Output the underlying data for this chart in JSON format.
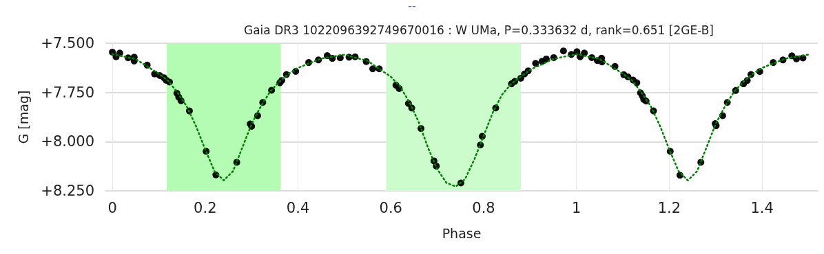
{
  "chart_data": {
    "type": "scatter",
    "title": "Gaia DR3 1022096392749670016 : W UMa, P=0.333632 d, rank=0.651 [2GE-B]",
    "xlabel": "Phase",
    "ylabel": "G [mag]",
    "annotations": [
      "--"
    ],
    "xlim": [
      -0.015,
      1.52
    ],
    "xticks": [
      0,
      0.2,
      0.4,
      0.6,
      0.8,
      1,
      1.2,
      1.4
    ],
    "ylim": [
      8.25,
      7.5
    ],
    "yticks": [
      {
        "value": 7.5,
        "label": "+7.500"
      },
      {
        "value": 7.75,
        "label": "+7.750"
      },
      {
        "value": 8.0,
        "label": "+8.000"
      },
      {
        "value": 8.25,
        "label": "+8.250"
      }
    ],
    "grid": true,
    "marker": "circle",
    "bands": [
      {
        "axis": "x",
        "from": 0.117,
        "to": 0.363,
        "color": "#b4fcb4"
      },
      {
        "axis": "x",
        "from": 0.59,
        "to": 0.88,
        "color": "#ccfccc"
      }
    ],
    "series": [
      {
        "color": "#000000",
        "x": [
          0.0,
          0.008,
          0.016,
          0.034,
          0.047,
          0.047,
          0.075,
          0.091,
          0.102,
          0.111,
          0.116,
          0.123,
          0.139,
          0.143,
          0.148,
          0.166,
          0.202,
          0.223,
          0.268,
          0.297,
          0.3,
          0.313,
          0.324,
          0.343,
          0.361,
          0.365,
          0.375,
          0.395,
          0.423,
          0.444,
          0.463,
          0.474,
          0.491,
          0.51,
          0.523,
          0.547,
          0.561,
          0.575,
          0.611,
          0.618,
          0.638,
          0.645,
          0.665,
          0.693,
          0.698,
          0.751,
          0.793,
          0.797,
          0.826,
          0.86,
          0.867,
          0.88,
          0.888,
          0.896,
          0.912,
          0.926,
          0.935,
          0.951,
          0.972,
          0.989,
          1.001,
          1.008,
          1.017,
          1.033,
          1.045,
          1.054,
          1.055,
          1.083,
          1.102,
          1.111,
          1.122,
          1.13,
          1.138,
          1.142,
          1.145,
          1.15,
          1.166,
          1.202,
          1.223,
          1.268,
          1.299,
          1.301,
          1.315,
          1.325,
          1.343,
          1.36,
          1.368,
          1.376,
          1.395,
          1.424,
          1.445,
          1.464,
          1.474,
          1.488
        ],
        "values": [
          7.545,
          7.569,
          7.55,
          7.574,
          7.571,
          7.59,
          7.611,
          7.656,
          7.664,
          7.675,
          7.688,
          7.697,
          7.754,
          7.774,
          7.792,
          7.844,
          8.049,
          8.169,
          8.105,
          7.91,
          7.922,
          7.868,
          7.801,
          7.739,
          7.701,
          7.689,
          7.659,
          7.643,
          7.598,
          7.585,
          7.563,
          7.577,
          7.574,
          7.571,
          7.569,
          7.593,
          7.63,
          7.63,
          7.713,
          7.73,
          7.806,
          7.829,
          7.933,
          8.098,
          8.124,
          8.21,
          8.017,
          7.973,
          7.829,
          7.706,
          7.694,
          7.678,
          7.656,
          7.64,
          7.602,
          7.592,
          7.58,
          7.573,
          7.539,
          7.557,
          7.543,
          7.569,
          7.55,
          7.573,
          7.588,
          7.576,
          7.595,
          7.618,
          7.66,
          7.671,
          7.687,
          7.701,
          7.752,
          7.768,
          7.786,
          7.794,
          7.844,
          8.049,
          8.171,
          8.105,
          7.908,
          7.919,
          7.868,
          7.801,
          7.74,
          7.706,
          7.689,
          7.659,
          7.644,
          7.598,
          7.585,
          7.564,
          7.579,
          7.575
        ]
      },
      {
        "type": "line",
        "color": "#008000",
        "line_style": "dotted",
        "marker": "none",
        "x": [
          0,
          0.05,
          0.1,
          0.12,
          0.14,
          0.16,
          0.18,
          0.2,
          0.22,
          0.24,
          0.26,
          0.28,
          0.3,
          0.32,
          0.34,
          0.36,
          0.38,
          0.4,
          0.45,
          0.5,
          0.55,
          0.6,
          0.62,
          0.64,
          0.66,
          0.68,
          0.7,
          0.72,
          0.74,
          0.76,
          0.78,
          0.8,
          0.82,
          0.84,
          0.86,
          0.88,
          0.9,
          0.95,
          1.0,
          1.05,
          1.1,
          1.12,
          1.14,
          1.16,
          1.18,
          1.2,
          1.22,
          1.24,
          1.26,
          1.28,
          1.3,
          1.32,
          1.34,
          1.36,
          1.38,
          1.4,
          1.45,
          1.5
        ],
        "values": [
          7.555,
          7.58,
          7.655,
          7.69,
          7.75,
          7.82,
          7.92,
          8.04,
          8.15,
          8.197,
          8.15,
          8.03,
          7.91,
          7.82,
          7.745,
          7.695,
          7.655,
          7.625,
          7.578,
          7.558,
          7.59,
          7.67,
          7.72,
          7.8,
          7.9,
          8.03,
          8.14,
          8.21,
          8.228,
          8.19,
          8.09,
          7.97,
          7.85,
          7.76,
          7.705,
          7.67,
          7.635,
          7.58,
          7.555,
          7.58,
          7.655,
          7.69,
          7.75,
          7.82,
          7.92,
          8.04,
          8.15,
          8.197,
          8.15,
          8.03,
          7.91,
          7.82,
          7.745,
          7.695,
          7.655,
          7.625,
          7.578,
          7.558
        ]
      }
    ]
  }
}
